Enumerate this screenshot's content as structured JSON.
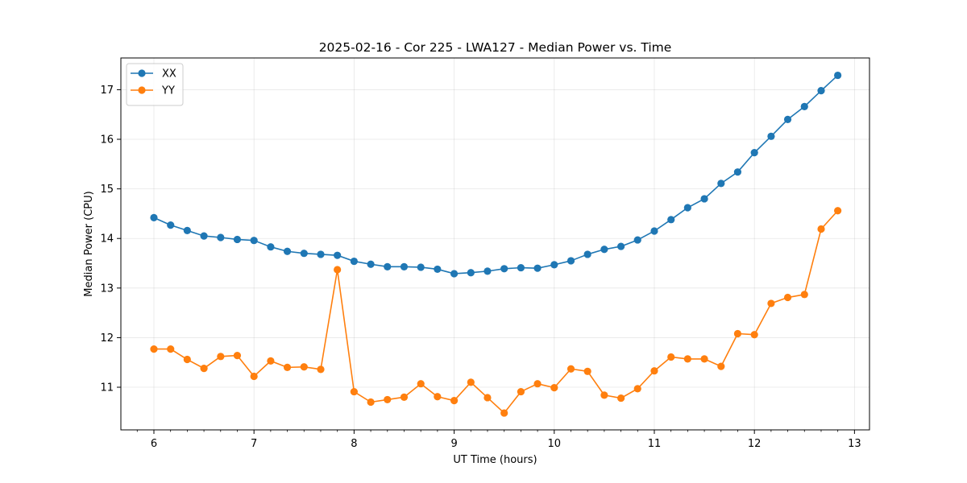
{
  "chart_data": {
    "type": "line",
    "title": "2025-02-16 - Cor 225 - LWA127 - Median Power vs. Time",
    "xlabel": "UT Time (hours)",
    "ylabel": "Median Power (CPU)",
    "xlim": [
      5.67,
      13.15
    ],
    "ylim": [
      10.14,
      17.64
    ],
    "xticks": [
      6,
      7,
      8,
      9,
      10,
      11,
      12,
      13
    ],
    "yticks": [
      11,
      12,
      13,
      14,
      15,
      16,
      17
    ],
    "grid": true,
    "legend_position": "top-left",
    "x": [
      6.0,
      6.167,
      6.333,
      6.5,
      6.667,
      6.833,
      7.0,
      7.167,
      7.333,
      7.5,
      7.667,
      7.833,
      8.0,
      8.167,
      8.333,
      8.5,
      8.667,
      8.833,
      9.0,
      9.167,
      9.333,
      9.5,
      9.667,
      9.833,
      10.0,
      10.167,
      10.333,
      10.5,
      10.667,
      10.833,
      11.0,
      11.167,
      11.333,
      11.5,
      11.667,
      11.833,
      12.0,
      12.167,
      12.333,
      12.5,
      12.667,
      12.833
    ],
    "series": [
      {
        "name": "XX",
        "color": "#1f77b4",
        "values": [
          14.42,
          14.27,
          14.16,
          14.05,
          14.02,
          13.98,
          13.96,
          13.83,
          13.74,
          13.7,
          13.68,
          13.66,
          13.54,
          13.48,
          13.43,
          13.43,
          13.42,
          13.38,
          13.29,
          13.31,
          13.34,
          13.39,
          13.41,
          13.4,
          13.47,
          13.55,
          13.68,
          13.78,
          13.84,
          13.97,
          14.15,
          14.38,
          14.62,
          14.8,
          15.11,
          15.34,
          15.73,
          16.06,
          16.4,
          16.66,
          16.98,
          17.29
        ]
      },
      {
        "name": "YY",
        "color": "#ff7f0e",
        "values": [
          11.77,
          11.77,
          11.56,
          11.38,
          11.62,
          11.64,
          11.22,
          11.53,
          11.4,
          11.41,
          11.36,
          13.37,
          10.91,
          10.7,
          10.75,
          10.8,
          11.07,
          10.81,
          10.73,
          11.1,
          10.79,
          10.48,
          10.91,
          11.07,
          10.99,
          11.37,
          11.32,
          10.84,
          10.78,
          10.97,
          11.33,
          11.61,
          11.57,
          11.57,
          11.42,
          12.08,
          12.06,
          12.69,
          12.81,
          12.87,
          14.19,
          14.56
        ]
      }
    ]
  }
}
